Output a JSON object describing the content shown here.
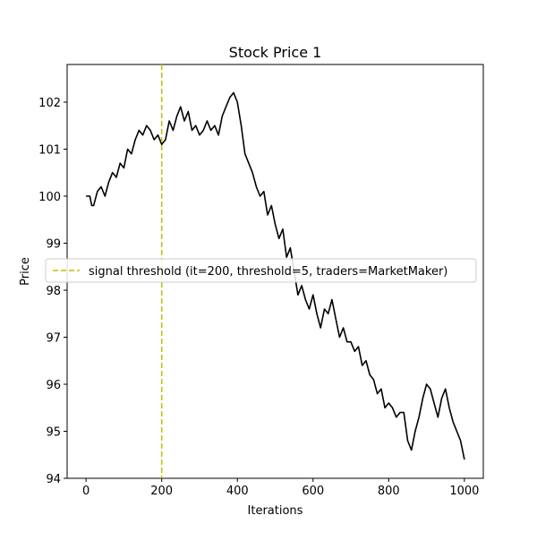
{
  "chart_data": {
    "type": "line",
    "title": "Stock Price 1",
    "xlabel": "Iterations",
    "ylabel": "Price",
    "xlim": [
      -50,
      1050
    ],
    "ylim": [
      94,
      102.8
    ],
    "xticks": [
      0,
      200,
      400,
      600,
      800,
      1000
    ],
    "yticks": [
      94,
      95,
      96,
      97,
      98,
      99,
      100,
      101,
      102
    ],
    "grid": false,
    "legend_position": "center-left",
    "series": [
      {
        "color": "#000000",
        "x": [
          0,
          10,
          15,
          20,
          30,
          40,
          50,
          60,
          70,
          80,
          90,
          100,
          110,
          120,
          130,
          140,
          150,
          160,
          170,
          180,
          190,
          200,
          210,
          220,
          230,
          240,
          250,
          260,
          270,
          280,
          290,
          300,
          310,
          320,
          330,
          340,
          350,
          360,
          370,
          380,
          390,
          400,
          410,
          420,
          430,
          440,
          450,
          460,
          470,
          480,
          490,
          500,
          510,
          520,
          530,
          540,
          550,
          560,
          570,
          580,
          590,
          600,
          610,
          620,
          630,
          640,
          650,
          660,
          670,
          680,
          690,
          700,
          710,
          720,
          730,
          740,
          750,
          760,
          770,
          780,
          790,
          800,
          810,
          820,
          830,
          840,
          850,
          860,
          870,
          880,
          890,
          900,
          910,
          920,
          930,
          940,
          950,
          960,
          970,
          980,
          990,
          1000
        ],
        "values": [
          100,
          100,
          99.8,
          99.8,
          100.1,
          100.2,
          100.0,
          100.3,
          100.5,
          100.4,
          100.7,
          100.6,
          101.0,
          100.9,
          101.2,
          101.4,
          101.3,
          101.5,
          101.4,
          101.2,
          101.3,
          101.1,
          101.2,
          101.6,
          101.4,
          101.7,
          101.9,
          101.6,
          101.8,
          101.4,
          101.5,
          101.3,
          101.4,
          101.6,
          101.4,
          101.5,
          101.3,
          101.7,
          101.9,
          102.1,
          102.2,
          102.0,
          101.5,
          100.9,
          100.7,
          100.5,
          100.2,
          100.0,
          100.1,
          99.6,
          99.8,
          99.4,
          99.1,
          99.3,
          98.7,
          98.9,
          98.4,
          97.9,
          98.1,
          97.8,
          97.6,
          97.9,
          97.5,
          97.2,
          97.6,
          97.5,
          97.8,
          97.4,
          97.0,
          97.2,
          96.9,
          96.9,
          96.7,
          96.8,
          96.4,
          96.5,
          96.2,
          96.1,
          95.8,
          95.9,
          95.5,
          95.6,
          95.5,
          95.3,
          95.4,
          95.4,
          94.8,
          94.6,
          95.0,
          95.3,
          95.7,
          96.0,
          95.9,
          95.6,
          95.3,
          95.7,
          95.9,
          95.5,
          95.2,
          95.0,
          94.8,
          94.4
        ]
      }
    ],
    "vline": {
      "x": 200,
      "color": "#bfbf00",
      "style": "dashed"
    },
    "legend": [
      "signal threshold (it=200, threshold=5, traders=MarketMaker)"
    ]
  }
}
